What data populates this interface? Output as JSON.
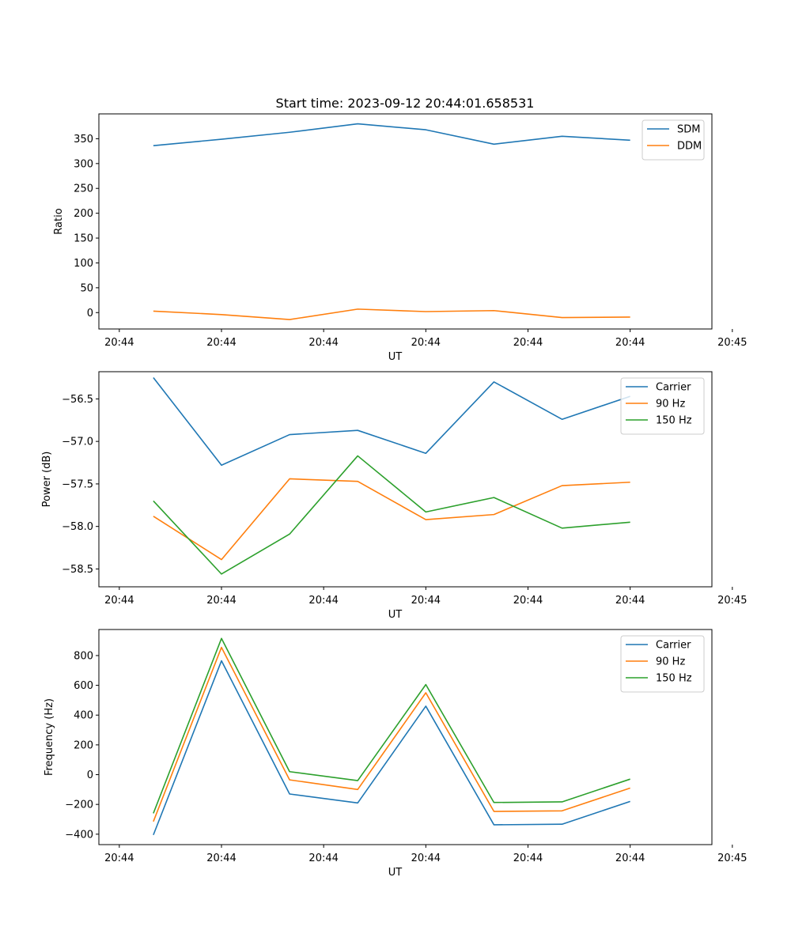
{
  "title": "Start time: 2023-09-12 20:44:01.658531",
  "colors": {
    "blue": "#1f77b4",
    "orange": "#ff7f0e",
    "green": "#2ca02c"
  },
  "chart_data": [
    {
      "type": "line",
      "ylabel": "Ratio",
      "xlabel": "UT",
      "x": [
        0,
        1,
        2,
        3,
        4,
        5,
        6,
        7
      ],
      "xlim": [
        -0.8,
        8.2
      ],
      "xticks": [
        -0.5,
        1,
        2.5,
        4,
        5.5,
        7,
        8.5
      ],
      "xtick_labels": [
        "20:44",
        "20:44",
        "20:44",
        "20:44",
        "20:44",
        "20:44",
        "20:45"
      ],
      "ylim": [
        -33,
        400
      ],
      "yticks": [
        0,
        50,
        100,
        150,
        200,
        250,
        300,
        350
      ],
      "ytick_labels": [
        "0",
        "50",
        "100",
        "150",
        "200",
        "250",
        "300",
        "350"
      ],
      "legend": "upper right",
      "series": [
        {
          "name": "SDM",
          "color": "#1f77b4",
          "values": [
            336,
            349,
            363,
            380,
            368,
            339,
            355,
            347
          ]
        },
        {
          "name": "DDM",
          "color": "#ff7f0e",
          "values": [
            3,
            -4,
            -14,
            7,
            2,
            4,
            -10,
            -9
          ]
        }
      ]
    },
    {
      "type": "line",
      "ylabel": "Power (dB)",
      "xlabel": "UT",
      "x": [
        0,
        1,
        2,
        3,
        4,
        5,
        6,
        7
      ],
      "xlim": [
        -0.8,
        8.2
      ],
      "xticks": [
        -0.5,
        1,
        2.5,
        4,
        5.5,
        7,
        8.5
      ],
      "xtick_labels": [
        "20:44",
        "20:44",
        "20:44",
        "20:44",
        "20:44",
        "20:44",
        "20:45"
      ],
      "ylim": [
        -58.71,
        -56.18
      ],
      "yticks": [
        -58.5,
        -58.0,
        -57.5,
        -57.0,
        -56.5
      ],
      "ytick_labels": [
        "−58.5",
        "−58.0",
        "−57.5",
        "−57.0",
        "−56.5"
      ],
      "legend": "upper right",
      "series": [
        {
          "name": "Carrier",
          "color": "#1f77b4",
          "values": [
            -56.25,
            -57.28,
            -56.92,
            -56.87,
            -57.14,
            -56.3,
            -56.74,
            -56.47
          ]
        },
        {
          "name": "90 Hz",
          "color": "#ff7f0e",
          "values": [
            -57.88,
            -58.39,
            -57.44,
            -57.47,
            -57.92,
            -57.86,
            -57.52,
            -57.48
          ]
        },
        {
          "name": "150 Hz",
          "color": "#2ca02c",
          "values": [
            -57.7,
            -58.56,
            -58.09,
            -57.17,
            -57.83,
            -57.66,
            -58.02,
            -57.95
          ]
        }
      ]
    },
    {
      "type": "line",
      "ylabel": "Frequency (Hz)",
      "xlabel": "UT",
      "x": [
        0,
        1,
        2,
        3,
        4,
        5,
        6,
        7
      ],
      "xlim": [
        -0.8,
        8.2
      ],
      "xticks": [
        -0.5,
        1,
        2.5,
        4,
        5.5,
        7,
        8.5
      ],
      "xtick_labels": [
        "20:44",
        "20:44",
        "20:44",
        "20:44",
        "20:44",
        "20:44",
        "20:45"
      ],
      "ylim": [
        -470,
        975
      ],
      "yticks": [
        -400,
        -200,
        0,
        200,
        400,
        600,
        800
      ],
      "ytick_labels": [
        "−400",
        "−200",
        "0",
        "200",
        "400",
        "600",
        "800"
      ],
      "legend": "upper right",
      "series": [
        {
          "name": "Carrier",
          "color": "#1f77b4",
          "values": [
            -405,
            765,
            -130,
            -190,
            460,
            -337,
            -333,
            -180
          ]
        },
        {
          "name": "90 Hz",
          "color": "#ff7f0e",
          "values": [
            -315,
            855,
            -35,
            -100,
            550,
            -247,
            -243,
            -90
          ]
        },
        {
          "name": "150 Hz",
          "color": "#2ca02c",
          "values": [
            -260,
            915,
            20,
            -40,
            605,
            -187,
            -183,
            -30
          ]
        }
      ]
    }
  ]
}
